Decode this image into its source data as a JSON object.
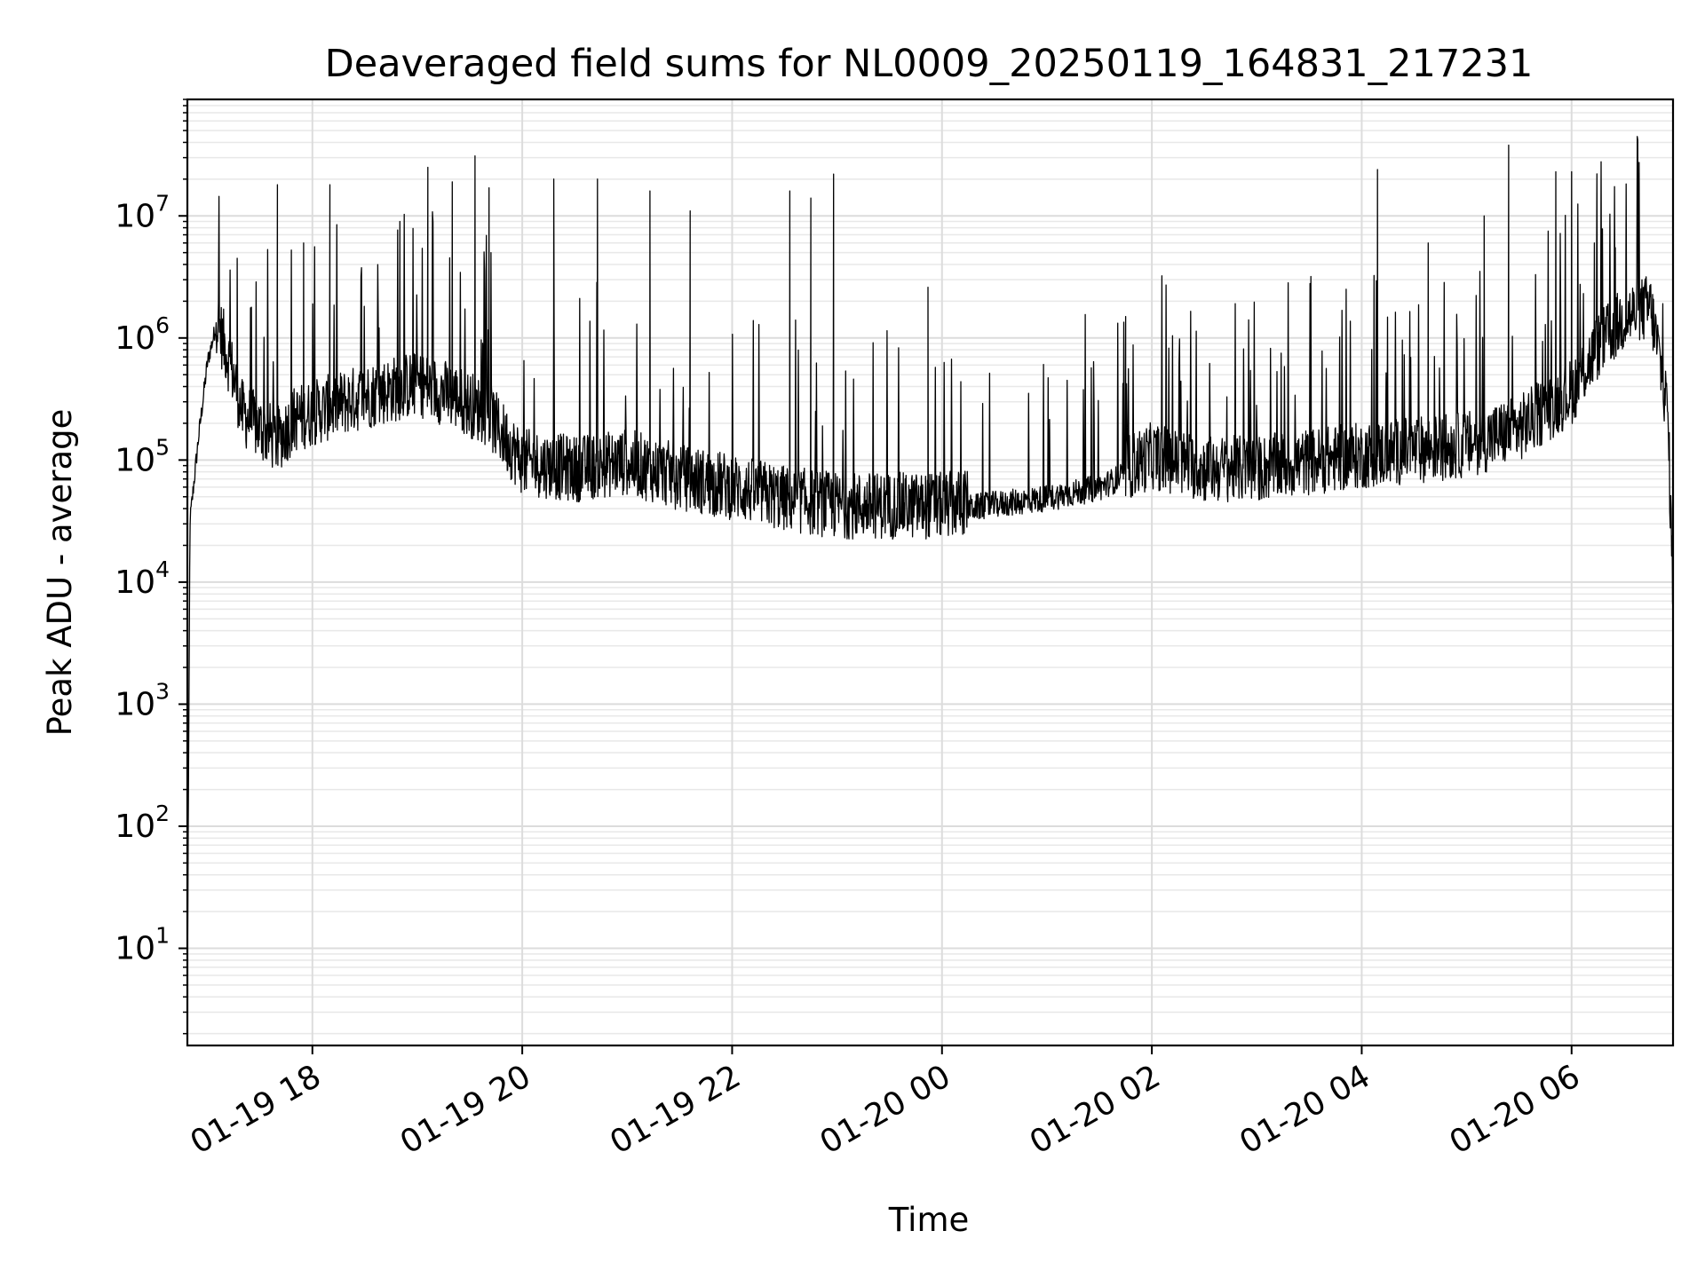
{
  "chart_data": {
    "type": "line",
    "title": "Deaveraged field sums for NL0009_20250119_164831_217231",
    "xlabel": "Time",
    "ylabel": "Peak ADU - average",
    "yscale": "log",
    "ylim": [
      1.6,
      90000000
    ],
    "xlim": [
      "2025-01-19 16:48:31",
      "2025-01-20 06:58:00"
    ],
    "x_ticks": [
      {
        "value": "2025-01-19 18:00",
        "label": "01-19 18"
      },
      {
        "value": "2025-01-19 20:00",
        "label": "01-19 20"
      },
      {
        "value": "2025-01-19 22:00",
        "label": "01-19 22"
      },
      {
        "value": "2025-01-20 00:00",
        "label": "01-20 00"
      },
      {
        "value": "2025-01-20 02:00",
        "label": "01-20 02"
      },
      {
        "value": "2025-01-20 04:00",
        "label": "01-20 04"
      },
      {
        "value": "2025-01-20 06:00",
        "label": "01-20 06"
      }
    ],
    "y_ticks": [
      {
        "value": 10,
        "base": "10",
        "exp": "1"
      },
      {
        "value": 100,
        "base": "10",
        "exp": "2"
      },
      {
        "value": 1000,
        "base": "10",
        "exp": "3"
      },
      {
        "value": 10000,
        "base": "10",
        "exp": "4"
      },
      {
        "value": 100000,
        "base": "10",
        "exp": "5"
      },
      {
        "value": 1000000,
        "base": "10",
        "exp": "6"
      },
      {
        "value": 10000000,
        "base": "10",
        "exp": "7"
      }
    ],
    "grid": true,
    "line_color": "#000000",
    "series": [
      {
        "x": [
          "2025-01-19 16:48:31",
          "2025-01-19 16:50",
          "2025-01-19 16:55",
          "2025-01-19 17:00",
          "2025-01-19 17:05",
          "2025-01-19 17:10",
          "2025-01-19 17:15",
          "2025-01-19 17:20",
          "2025-01-19 17:30",
          "2025-01-19 17:40",
          "2025-01-19 17:50",
          "2025-01-19 18:00",
          "2025-01-19 18:20",
          "2025-01-19 18:40",
          "2025-01-19 19:00",
          "2025-01-19 19:20",
          "2025-01-19 19:40",
          "2025-01-19 20:00",
          "2025-01-19 20:30",
          "2025-01-19 21:00",
          "2025-01-19 21:30",
          "2025-01-19 22:00",
          "2025-01-19 22:30",
          "2025-01-19 23:00",
          "2025-01-19 23:30",
          "2025-01-20 00:00",
          "2025-01-20 00:30",
          "2025-01-20 01:00",
          "2025-01-20 01:30",
          "2025-01-20 02:00",
          "2025-01-20 02:30",
          "2025-01-20 03:00",
          "2025-01-20 03:30",
          "2025-01-20 04:00",
          "2025-01-20 04:30",
          "2025-01-20 05:00",
          "2025-01-20 05:30",
          "2025-01-20 06:00",
          "2025-01-20 06:15",
          "2025-01-20 06:30",
          "2025-01-20 06:45",
          "2025-01-20 06:50",
          "2025-01-20 06:55",
          "2025-01-20 06:58"
        ],
        "y": [
          4,
          30000,
          150000,
          600000,
          1200000,
          700000,
          400000,
          200000,
          150000,
          120000,
          180000,
          200000,
          250000,
          300000,
          350000,
          280000,
          200000,
          80000,
          70000,
          80000,
          60000,
          50000,
          40000,
          35000,
          35000,
          35000,
          40000,
          45000,
          55000,
          90000,
          70000,
          70000,
          80000,
          90000,
          100000,
          110000,
          150000,
          300000,
          700000,
          1200000,
          1500000,
          600000,
          200000,
          7000
        ]
      }
    ],
    "spikes": [
      {
        "x": "2025-01-19 17:17",
        "y": 4500000
      },
      {
        "x": "2025-01-19 17:40",
        "y": 18000000
      },
      {
        "x": "2025-01-19 17:55",
        "y": 6000000
      },
      {
        "x": "2025-01-19 18:10",
        "y": 18000000
      },
      {
        "x": "2025-01-19 18:50",
        "y": 9000000
      },
      {
        "x": "2025-01-19 19:06",
        "y": 25000000
      },
      {
        "x": "2025-01-19 19:20",
        "y": 19000000
      },
      {
        "x": "2025-01-19 19:33",
        "y": 31000000
      },
      {
        "x": "2025-01-19 19:41",
        "y": 17000000
      },
      {
        "x": "2025-01-19 20:18",
        "y": 20000000
      },
      {
        "x": "2025-01-19 20:43",
        "y": 20000000
      },
      {
        "x": "2025-01-19 21:13",
        "y": 16000000
      },
      {
        "x": "2025-01-19 21:36",
        "y": 11000000
      },
      {
        "x": "2025-01-19 22:33",
        "y": 16000000
      },
      {
        "x": "2025-01-19 22:45",
        "y": 14000000
      },
      {
        "x": "2025-01-19 22:58",
        "y": 22000000
      },
      {
        "x": "2025-01-19 23:52",
        "y": 2600000
      },
      {
        "x": "2025-01-20 01:45",
        "y": 1500000
      },
      {
        "x": "2025-01-20 04:09",
        "y": 24000000
      },
      {
        "x": "2025-01-20 04:38",
        "y": 6000000
      },
      {
        "x": "2025-01-20 05:10",
        "y": 10000000
      },
      {
        "x": "2025-01-20 05:24",
        "y": 38000000
      },
      {
        "x": "2025-01-20 05:51",
        "y": 23000000
      },
      {
        "x": "2025-01-20 06:00",
        "y": 23000000
      },
      {
        "x": "2025-01-20 06:13",
        "y": 6000000
      },
      {
        "x": "2025-01-20 06:25",
        "y": 5500000
      }
    ]
  }
}
